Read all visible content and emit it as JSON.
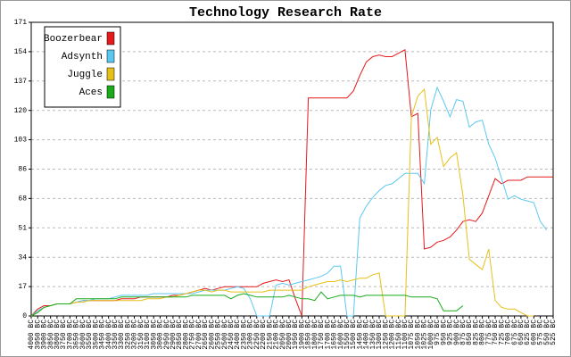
{
  "chart_data": {
    "type": "line",
    "title": "Technology Research Rate",
    "categories": [
      "4000 BC",
      "3950 BC",
      "3900 BC",
      "3850 BC",
      "3800 BC",
      "3750 BC",
      "3700 BC",
      "3650 BC",
      "3600 BC",
      "3550 BC",
      "3500 BC",
      "3450 BC",
      "3400 BC",
      "3350 BC",
      "3300 BC",
      "3250 BC",
      "3200 BC",
      "3150 BC",
      "3100 BC",
      "3050 BC",
      "3000 BC",
      "2950 BC",
      "2900 BC",
      "2850 BC",
      "2800 BC",
      "2750 BC",
      "2700 BC",
      "2650 BC",
      "2600 BC",
      "2550 BC",
      "2500 BC",
      "2450 BC",
      "2400 BC",
      "2350 BC",
      "2300 BC",
      "2250 BC",
      "2200 BC",
      "2150 BC",
      "2100 BC",
      "2050 BC",
      "2000 BC",
      "1950 BC",
      "1900 BC",
      "1850 BC",
      "1800 BC",
      "1750 BC",
      "1700 BC",
      "1650 BC",
      "1600 BC",
      "1550 BC",
      "1500 BC",
      "1450 BC",
      "1400 BC",
      "1350 BC",
      "1300 BC",
      "1250 BC",
      "1200 BC",
      "1150 BC",
      "1100 BC",
      "1075 BC",
      "1050 BC",
      "1025 BC",
      "1000 BC",
      "975 BC",
      "950 BC",
      "925 BC",
      "900 BC",
      "875 BC",
      "850 BC",
      "825 BC",
      "800 BC",
      "775 BC",
      "750 BC",
      "725 BC",
      "700 BC",
      "675 BC",
      "650 BC",
      "625 BC",
      "600 BC",
      "575 BC",
      "550 BC",
      "525 BC"
    ],
    "series": [
      {
        "name": "Boozerbear",
        "color": "#e41a1c",
        "values": [
          0,
          4,
          6,
          6,
          7,
          7,
          7,
          8,
          9,
          9,
          9,
          9,
          9,
          9,
          10,
          10,
          10,
          11,
          11,
          11,
          11,
          11,
          12,
          12,
          13,
          14,
          15,
          16,
          15,
          16,
          17,
          17,
          17,
          17,
          17,
          17,
          19,
          20,
          21,
          20,
          21,
          10,
          0,
          127,
          127,
          127,
          127,
          127,
          127,
          127,
          131,
          140,
          148,
          151,
          152,
          151,
          151,
          153,
          155,
          116,
          118,
          39,
          40,
          43,
          44,
          46,
          50,
          55,
          56,
          55,
          60,
          70,
          80,
          77,
          79,
          79,
          79,
          81,
          81,
          81,
          81,
          81
        ]
      },
      {
        "name": "Adsynth",
        "color": "#5bc8f0",
        "values": [
          0,
          3,
          5,
          6,
          7,
          7,
          7,
          8,
          9,
          9,
          10,
          10,
          10,
          11,
          12,
          12,
          12,
          12,
          12,
          13,
          13,
          13,
          13,
          13,
          13,
          13,
          14,
          15,
          15,
          15,
          15,
          16,
          17,
          16,
          10,
          0,
          0,
          0,
          18,
          19,
          18,
          19,
          20,
          21,
          22,
          23,
          25,
          29,
          29,
          0,
          0,
          57,
          64,
          69,
          73,
          76,
          77,
          80,
          83,
          83,
          83,
          77,
          120,
          133,
          125,
          116,
          126,
          125,
          110,
          113,
          114,
          100,
          92,
          80,
          68,
          70,
          68,
          67,
          66,
          55,
          50,
          null
        ]
      },
      {
        "name": "Juggle",
        "color": "#e6c01a",
        "values": [
          0,
          2,
          5,
          6,
          7,
          7,
          7,
          8,
          8,
          9,
          9,
          9,
          9,
          9,
          9,
          9,
          9,
          9,
          10,
          10,
          10,
          11,
          11,
          12,
          13,
          14,
          15,
          15,
          14,
          15,
          15,
          14,
          14,
          14,
          14,
          14,
          14,
          15,
          15,
          15,
          15,
          15,
          15,
          17,
          18,
          19,
          20,
          20,
          21,
          20,
          21,
          22,
          22,
          24,
          25,
          0,
          0,
          0,
          0,
          116,
          128,
          132,
          100,
          104,
          87,
          92,
          95,
          70,
          33,
          30,
          27,
          39,
          9,
          5,
          4,
          4,
          2,
          0,
          0,
          null,
          null,
          null
        ]
      },
      {
        "name": "Aces",
        "color": "#1aaa1a",
        "values": [
          0,
          2,
          5,
          6,
          7,
          7,
          7,
          10,
          10,
          10,
          10,
          10,
          10,
          10,
          11,
          11,
          11,
          11,
          11,
          11,
          11,
          11,
          11,
          11,
          11,
          12,
          12,
          12,
          12,
          12,
          12,
          10,
          12,
          13,
          12,
          11,
          11,
          11,
          11,
          11,
          12,
          11,
          10,
          10,
          9,
          14,
          10,
          11,
          12,
          12,
          12,
          11,
          12,
          12,
          12,
          12,
          12,
          12,
          12,
          11,
          11,
          11,
          11,
          10,
          3,
          3,
          3,
          6,
          null,
          null,
          null,
          null,
          null,
          null,
          null,
          null,
          null,
          null,
          null,
          null,
          null,
          null
        ]
      }
    ],
    "ylim": [
      0,
      171
    ],
    "yticks": [
      0,
      {
        "value": 17.1,
        "label": "17"
      },
      {
        "value": 34.2,
        "label": "34"
      },
      {
        "value": 51.3,
        "label": "51"
      },
      {
        "value": 68.4,
        "label": "68"
      },
      {
        "value": 85.5,
        "label": "86"
      },
      {
        "value": 102.6,
        "label": "103"
      },
      {
        "value": 119.7,
        "label": "120"
      },
      {
        "value": 136.8,
        "label": "137"
      },
      {
        "value": 153.9,
        "label": "154"
      },
      171
    ],
    "grid": true,
    "legend": "upper left"
  }
}
